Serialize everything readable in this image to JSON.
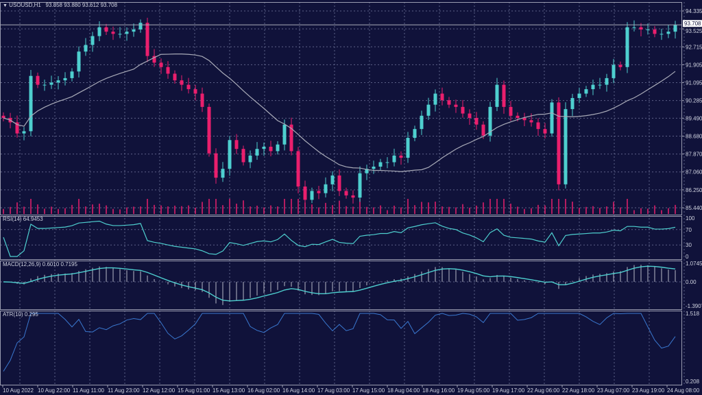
{
  "header": {
    "symbol": "USOUSD,H1",
    "ohlc": "93.858 93.880 93.612 93.708"
  },
  "current_price_label": "93.708",
  "colors": {
    "background": "#10123a",
    "bull": "#4ecfcf",
    "bear": "#ea1f6d",
    "ma": "#a9abb8",
    "indicator": "#4ecfcf",
    "atr": "#3a78d0",
    "grid": "#5d6188",
    "border": "#9a9cb0"
  },
  "chart_data": [
    {
      "type": "candlestick",
      "title": "USOUSD,H1",
      "price_ticks": [
        "94.335",
        "93.525",
        "92.715",
        "91.905",
        "91.095",
        "90.285",
        "89.490",
        "88.680",
        "87.870",
        "87.060",
        "86.250",
        "85.440"
      ],
      "ylim": [
        85.44,
        94.335
      ],
      "grid": true,
      "overlay": "moving average",
      "closes": [
        89.5,
        89.3,
        88.8,
        88.9,
        91.4,
        91.0,
        91.0,
        91.1,
        91.2,
        91.3,
        91.6,
        92.5,
        92.8,
        93.2,
        93.6,
        93.4,
        93.3,
        93.3,
        93.4,
        93.5,
        93.8,
        92.3,
        92.0,
        91.8,
        91.5,
        91.2,
        91.0,
        90.8,
        90.6,
        90.0,
        87.9,
        86.8,
        87.2,
        88.5,
        88.1,
        87.5,
        87.8,
        88.1,
        88.2,
        88.0,
        88.3,
        89.2,
        88.0,
        86.4,
        85.8,
        86.2,
        86.1,
        86.5,
        86.9,
        86.2,
        86.0,
        85.9,
        87.0,
        87.2,
        87.3,
        87.5,
        87.5,
        87.8,
        87.7,
        88.6,
        89.0,
        89.6,
        90.1,
        90.6,
        90.3,
        90.1,
        90.0,
        89.7,
        89.5,
        89.2,
        88.7,
        90.0,
        91.0,
        90.0,
        89.6,
        89.5,
        89.4,
        89.3,
        89.0,
        88.8,
        90.2,
        86.5,
        89.9,
        90.4,
        90.6,
        90.8,
        91.0,
        91.0,
        91.3,
        91.9,
        91.8,
        93.6,
        93.6,
        93.5,
        93.5,
        93.3,
        93.3,
        93.4,
        93.7
      ]
    },
    {
      "type": "line",
      "title": "RSI(14) 64.9453",
      "header": "RSI(14) 64.9453",
      "ticks": [
        "100",
        "70",
        "30",
        "0"
      ],
      "ylim": [
        0,
        100
      ],
      "levels": [
        70,
        30
      ]
    },
    {
      "type": "bar+line",
      "title": "MACD(12,26,9) 0.6010 0.7195",
      "header": "MACD(12,26,9) 0.6010 0.7195",
      "ticks": [
        "1.0745",
        "0.00",
        "-1.3907"
      ],
      "ylim": [
        -1.3907,
        1.0745
      ]
    },
    {
      "type": "line",
      "title": "ATR(10) 0.295",
      "header": "ATR(10) 0.295",
      "ticks": [
        "1.518",
        "0.208"
      ],
      "ylim": [
        0.208,
        1.518
      ]
    }
  ],
  "time_axis": [
    "10 Aug 2022",
    "10 Aug 22:00",
    "11 Aug 11:00",
    "11 Aug 23:00",
    "12 Aug 12:00",
    "15 Aug 01:00",
    "15 Aug 13:00",
    "16 Aug 02:00",
    "16 Aug 14:00",
    "17 Aug 03:00",
    "17 Aug 15:00",
    "18 Aug 04:00",
    "18 Aug 16:00",
    "19 Aug 05:00",
    "19 Aug 17:00",
    "22 Aug 06:00",
    "22 Aug 18:00",
    "23 Aug 07:00",
    "23 Aug 19:00",
    "24 Aug 08:00"
  ]
}
